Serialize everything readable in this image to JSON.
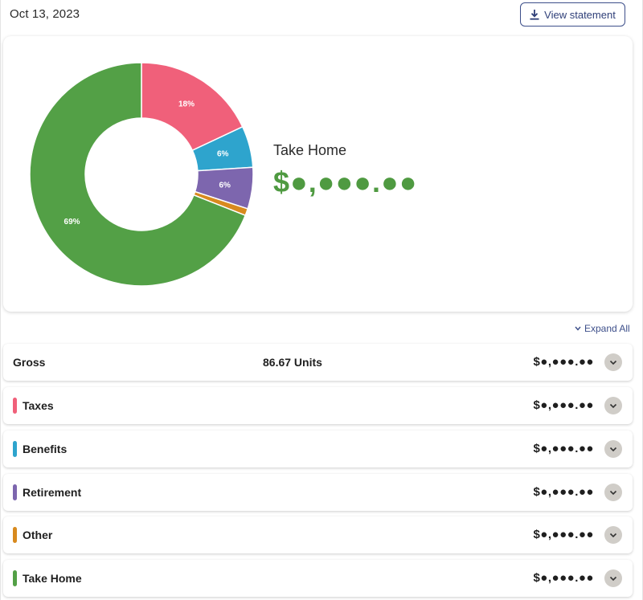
{
  "header": {
    "date": "Oct 13, 2023",
    "view_statement_label": "View statement",
    "view_statement_icon": "download-icon"
  },
  "chart_data": {
    "type": "pie",
    "categories": [
      "Taxes",
      "Benefits",
      "Retirement",
      "Other",
      "Take Home"
    ],
    "values": [
      18,
      6,
      6,
      1,
      69
    ],
    "value_labels": [
      "18%",
      "6%",
      "6%",
      "",
      "69%"
    ],
    "colors": [
      "#f0607a",
      "#2ea4cd",
      "#7d66ae",
      "#d88a1e",
      "#53a046"
    ],
    "donut": true
  },
  "summary": {
    "title": "Take Home",
    "amount": "$●,●●●.●●"
  },
  "expand_all_label": "Expand All",
  "rows": [
    {
      "label": "Gross",
      "units": "86.67 Units",
      "amount": "$●,●●●.●●",
      "color": ""
    },
    {
      "label": "Taxes",
      "units": "",
      "amount": "$●,●●●.●●",
      "color": "#f0607a"
    },
    {
      "label": "Benefits",
      "units": "",
      "amount": "$●,●●●.●●",
      "color": "#2ea4cd"
    },
    {
      "label": "Retirement",
      "units": "",
      "amount": "$●,●●●.●●",
      "color": "#7d66ae"
    },
    {
      "label": "Other",
      "units": "",
      "amount": "$●,●●●.●●",
      "color": "#d88a1e"
    },
    {
      "label": "Take Home",
      "units": "",
      "amount": "$●,●●●.●●",
      "color": "#53a046"
    }
  ]
}
